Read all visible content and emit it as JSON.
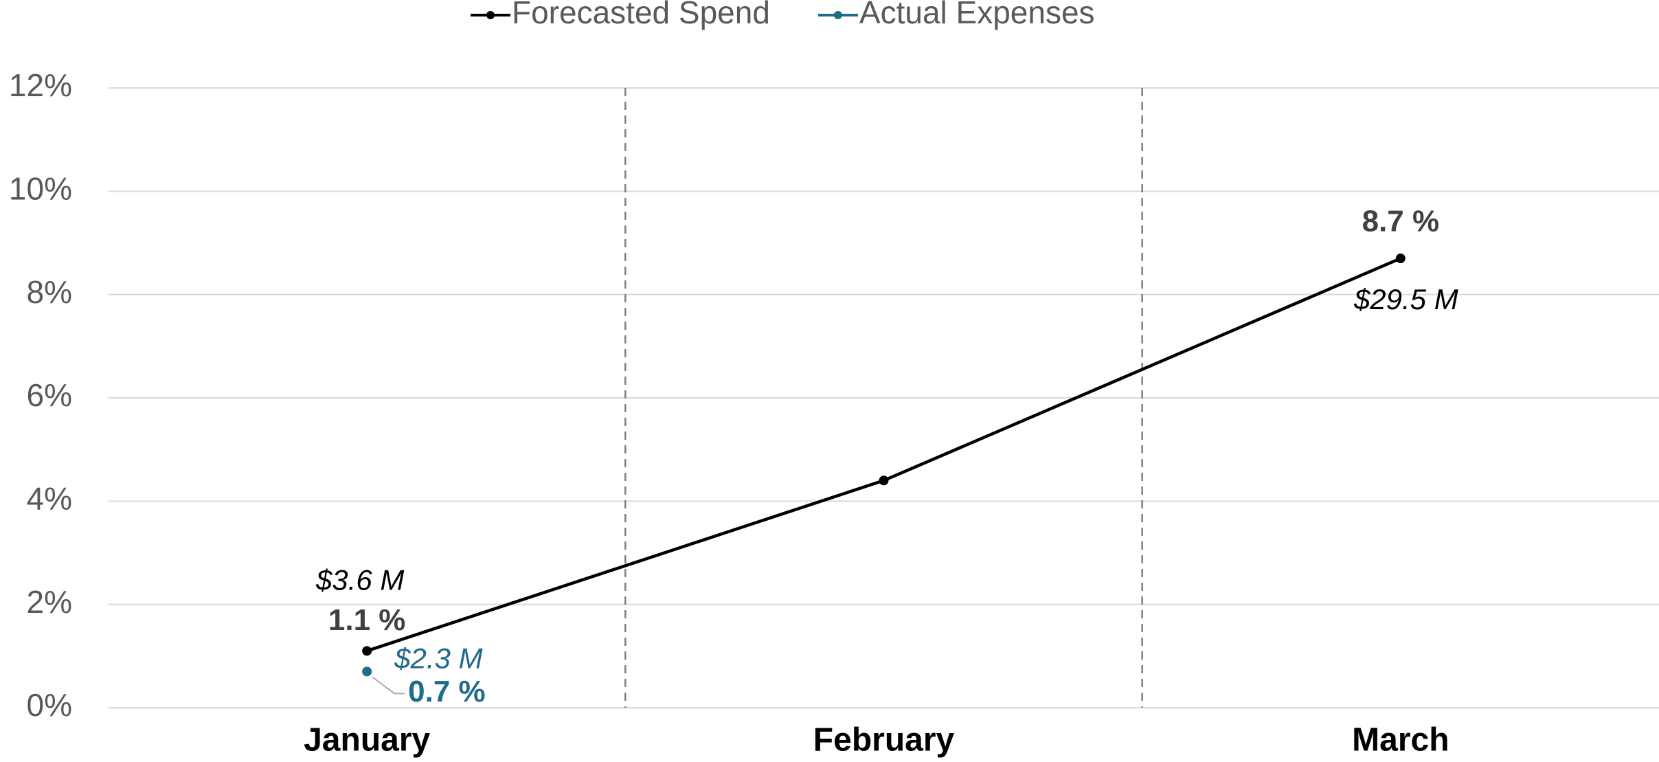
{
  "chart_data": {
    "type": "line",
    "categories": [
      "January",
      "February",
      "March"
    ],
    "series": [
      {
        "name": "Forecasted Spend",
        "color": "#000000",
        "values": [
          1.1,
          4.4,
          8.7
        ],
        "value_labels": [
          "1.1 %",
          null,
          "8.7 %"
        ],
        "amount_labels": [
          "$3.6 M",
          null,
          "$29.5 M"
        ]
      },
      {
        "name": "Actual Expenses",
        "color": "#1f6b8a",
        "values": [
          0.7,
          null,
          null
        ],
        "value_labels": [
          "0.7 %",
          null,
          null
        ],
        "amount_labels": [
          "$2.3 M",
          null,
          null
        ]
      }
    ],
    "ylim": [
      0,
      12
    ],
    "yticks": [
      {
        "value": 0,
        "label": "0%"
      },
      {
        "value": 2,
        "label": "2%"
      },
      {
        "value": 4,
        "label": "4%"
      },
      {
        "value": 6,
        "label": "6%"
      },
      {
        "value": 8,
        "label": "8%"
      },
      {
        "value": 10,
        "label": "10%"
      },
      {
        "value": 12,
        "label": "12%"
      }
    ],
    "grid": true,
    "legend": "top"
  }
}
